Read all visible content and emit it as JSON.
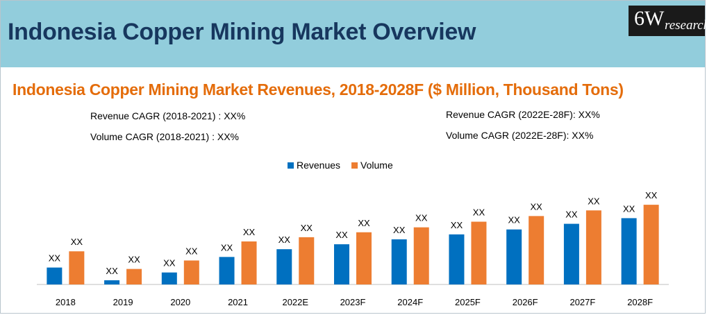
{
  "header": {
    "title": "Indonesia Copper Mining Market Overview",
    "logo_main": "6W",
    "logo_sub": "research"
  },
  "chart_title": "Indonesia Copper Mining Market Revenues, 2018-2028F ($ Million, Thousand Tons)",
  "cagr": {
    "revenue_hist": "Revenue CAGR (2018-2021) : XX%",
    "volume_hist": "Volume CAGR (2018-2021) : XX%",
    "revenue_fcst": "Revenue CAGR (2022E-28F): XX%",
    "volume_fcst": "Volume CAGR (2022E-28F): XX%"
  },
  "chart_data": {
    "type": "bar",
    "categories": [
      "2018",
      "2019",
      "2020",
      "2021",
      "2022E",
      "2023F",
      "2024F",
      "2025F",
      "2026F",
      "2027F",
      "2028F"
    ],
    "series": [
      {
        "name": "Revenues",
        "color": "#0070c0",
        "values": [
          24,
          6,
          17,
          39,
          50,
          57,
          64,
          71,
          78,
          86,
          94
        ],
        "data_labels": [
          "XX",
          "XX",
          "XX",
          "XX",
          "XX",
          "XX",
          "XX",
          "XX",
          "XX",
          "XX",
          "XX"
        ]
      },
      {
        "name": "Volume",
        "color": "#ed7d31",
        "values": [
          47,
          22,
          34,
          61,
          67,
          74,
          81,
          89,
          97,
          105,
          113
        ],
        "data_labels": [
          "XX",
          "XX",
          "XX",
          "XX",
          "XX",
          "XX",
          "XX",
          "XX",
          "XX",
          "XX",
          "XX"
        ]
      }
    ],
    "ylim": [
      0,
      120
    ],
    "gridlines": false,
    "legend_position": "top-center",
    "xlabel": "",
    "ylabel": ""
  }
}
